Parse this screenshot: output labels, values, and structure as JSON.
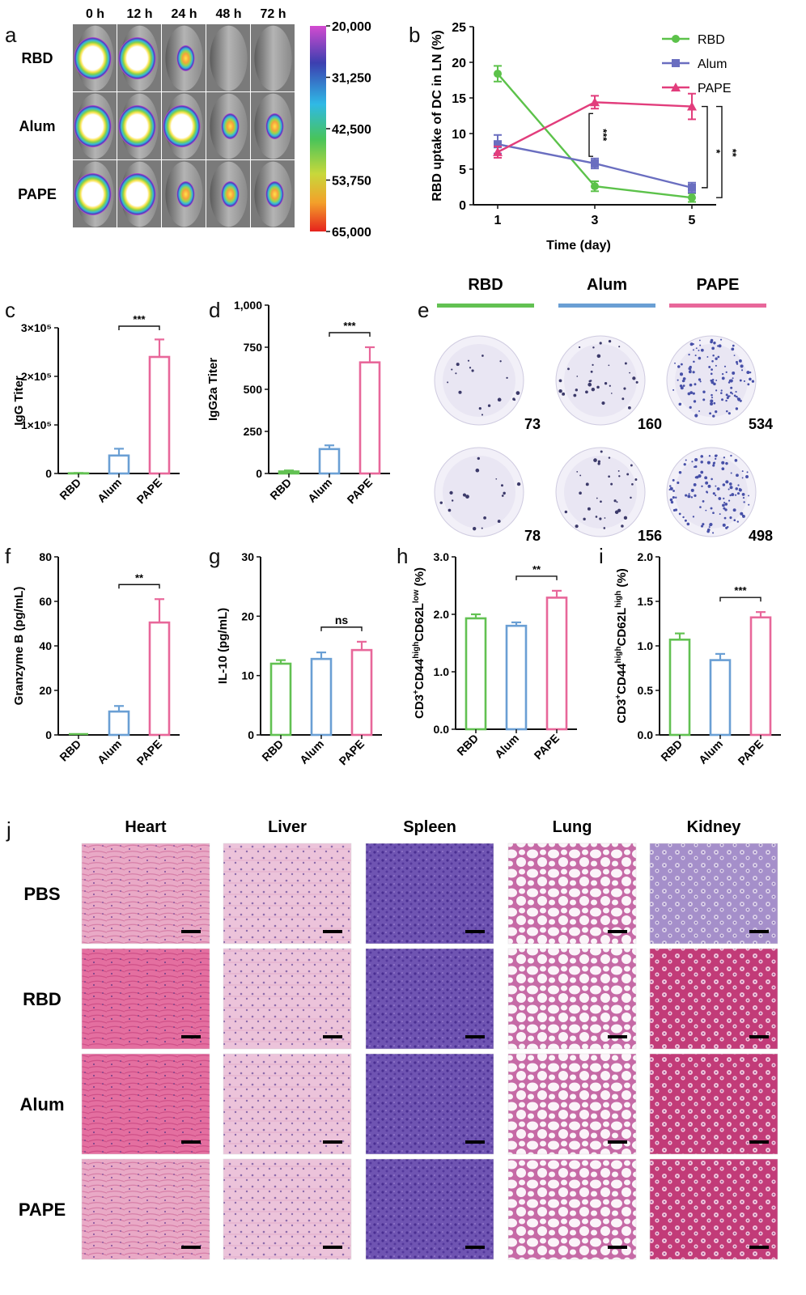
{
  "colors": {
    "RBD": "#62c152",
    "Alum": "#6a9fd4",
    "PAPE": "#e8679a",
    "lineRBD": "#5cc24a",
    "lineAlum": "#6a6ec0",
    "linePAPE": "#e23d7c"
  },
  "panel_a": {
    "letter": "a",
    "times": [
      "0 h",
      "12 h",
      "24 h",
      "48 h",
      "72 h"
    ],
    "rows": [
      "RBD",
      "Alum",
      "PAPE"
    ],
    "spots": [
      [
        2,
        2,
        1,
        0,
        0
      ],
      [
        2,
        2,
        2,
        1,
        1
      ],
      [
        2,
        2,
        1,
        1,
        1
      ]
    ],
    "colorbar_ticks": [
      "20,000",
      "31,250",
      "42,500",
      "53,750",
      "65,000"
    ]
  },
  "panel_j": {
    "letter": "j",
    "organs": [
      "Heart",
      "Liver",
      "Spleen",
      "Lung",
      "Kidney"
    ],
    "groups": [
      "PBS",
      "RBD",
      "Alum",
      "PAPE"
    ]
  },
  "panel_e": {
    "letter": "e",
    "groups": [
      "RBD",
      "Alum",
      "PAPE"
    ],
    "counts_row1": [
      "73",
      "160",
      "534"
    ],
    "counts_row2": [
      "78",
      "156",
      "498"
    ]
  },
  "chart_data": [
    {
      "id": "b",
      "type": "line",
      "letter": "b",
      "xlabel": "Time (day)",
      "ylabel": "RBD uptake of DC in LN (%)",
      "x": [
        1,
        3,
        5
      ],
      "xticks": [
        "1",
        "3",
        "5"
      ],
      "ylim": [
        0,
        25
      ],
      "yticks": [
        "0",
        "5",
        "10",
        "15",
        "20",
        "25"
      ],
      "series": [
        {
          "name": "RBD",
          "values": [
            18.4,
            2.6,
            1.0
          ],
          "err": [
            1.1,
            0.7,
            0.6
          ]
        },
        {
          "name": "Alum",
          "values": [
            8.5,
            5.8,
            2.4
          ],
          "err": [
            1.3,
            0.7,
            0.7
          ]
        },
        {
          "name": "PAPE",
          "values": [
            7.4,
            14.4,
            13.8
          ],
          "err": [
            0.8,
            0.9,
            1.8
          ]
        }
      ],
      "legend": "top-right",
      "sig": [
        {
          "label": "***"
        },
        {
          "label": "*"
        },
        {
          "label": "**"
        }
      ]
    },
    {
      "id": "c",
      "type": "bar",
      "letter": "c",
      "categories": [
        "RBD",
        "Alum",
        "PAPE"
      ],
      "ylabel": "IgG Titer",
      "values": [
        500,
        37000,
        240000
      ],
      "err": [
        600,
        14000,
        36000
      ],
      "ylim": [
        0,
        300000
      ],
      "yticks": [
        "0",
        "1×10⁵",
        "2×10⁵",
        "3×10⁵"
      ],
      "sig": "***"
    },
    {
      "id": "d",
      "type": "bar",
      "letter": "d",
      "categories": [
        "RBD",
        "Alum",
        "PAPE"
      ],
      "ylabel": "IgG2a Titer",
      "values": [
        12,
        145,
        660
      ],
      "err": [
        6,
        22,
        90
      ],
      "ylim": [
        0,
        1000
      ],
      "yticks": [
        "0",
        "250",
        "500",
        "750",
        "1,000"
      ],
      "sig": "***"
    },
    {
      "id": "f",
      "type": "bar",
      "letter": "f",
      "categories": [
        "RBD",
        "Alum",
        "PAPE"
      ],
      "ylabel": "Granzyme B (pg/mL)",
      "values": [
        0,
        10.5,
        50.5
      ],
      "err": [
        0,
        2.5,
        10.5
      ],
      "ylim": [
        0,
        80
      ],
      "yticks": [
        "0",
        "20",
        "40",
        "60",
        "80"
      ],
      "sig": "**"
    },
    {
      "id": "g",
      "type": "bar",
      "letter": "g",
      "categories": [
        "RBD",
        "Alum",
        "PAPE"
      ],
      "ylabel": "IL-10 (pg/mL)",
      "values": [
        12.0,
        12.8,
        14.3
      ],
      "err": [
        0.6,
        1.1,
        1.4
      ],
      "ylim": [
        0,
        30
      ],
      "yticks": [
        "0",
        "10",
        "20",
        "30"
      ],
      "sig": "ns"
    },
    {
      "id": "h",
      "type": "bar",
      "letter": "h",
      "categories": [
        "RBD",
        "Alum",
        "PAPE"
      ],
      "ylabel_parts": [
        "CD3",
        "+",
        "CD44",
        "high",
        "CD62L",
        "low",
        " (%)"
      ],
      "values": [
        1.93,
        1.8,
        2.29
      ],
      "err": [
        0.07,
        0.06,
        0.12
      ],
      "ylim": [
        0,
        3
      ],
      "yticks": [
        "0.0",
        "1.0",
        "2.0",
        "3.0"
      ],
      "sig": "**"
    },
    {
      "id": "i",
      "type": "bar",
      "letter": "i",
      "categories": [
        "RBD",
        "Alum",
        "PAPE"
      ],
      "ylabel_parts": [
        "CD3",
        "+",
        "CD44",
        "high",
        "CD62L",
        "high",
        " (%)"
      ],
      "values": [
        1.07,
        0.84,
        1.32
      ],
      "err": [
        0.07,
        0.07,
        0.06
      ],
      "ylim": [
        0,
        2
      ],
      "yticks": [
        "0.0",
        "0.5",
        "1.0",
        "1.5",
        "2.0"
      ],
      "sig": "***"
    }
  ]
}
